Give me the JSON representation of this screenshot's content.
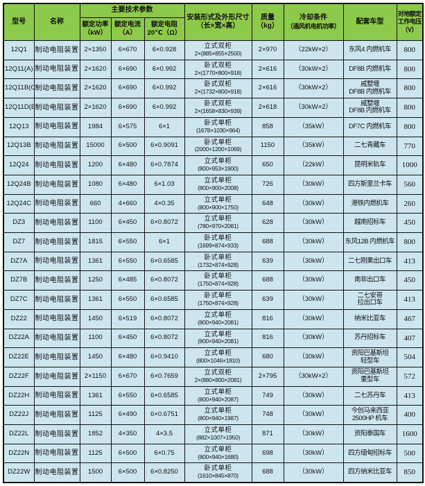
{
  "table": {
    "header": {
      "model": "型号",
      "name": "名称",
      "params_group": "主要技术参数",
      "power": "额定功率\n（kW）",
      "current": "额定电流\n（A）",
      "resistance": "额定电阻\n20℃（Ω）",
      "install": "安装形式及外形尺寸\n（长×宽×高）",
      "mass": "质量\n（kg）",
      "cooling_title": "冷却条件",
      "cooling_sub": "（通风机电机功率）",
      "vehicle": "配套车型",
      "voltage": "对地额定\n工作电压\n（V）"
    },
    "rows": [
      {
        "model": "12Q1",
        "name": "制动电阻装置",
        "power": "2×1350",
        "current": "6×670",
        "resistance": "6×0.928",
        "form": "立式双柜",
        "dims": "2×(885×855×2500)",
        "mass": "2×970",
        "cooling": "（22kW×2）",
        "vehicle": "东风4 内燃机车",
        "voltage": "800"
      },
      {
        "model": "12Q11(A)",
        "name": "制动电阻装置",
        "power": "2×1620",
        "current": "6×690",
        "resistance": "6×0.992",
        "form": "卧式双柜",
        "dims": "2×(1770×800×918)",
        "mass": "2×616",
        "cooling": "（30kW×2）",
        "vehicle": "DF8B 内燃机车",
        "voltage": "800"
      },
      {
        "model": "12Q11B(C)",
        "name": "制动电阻装置",
        "power": "2×1620",
        "current": "6×690",
        "resistance": "6×0.992",
        "form": "卧式双柜",
        "dims": "2×(1732×800×918)",
        "mass": "2×616",
        "cooling": "（30kW×2）",
        "vehicle": "戚墅堰\nDF8B 内燃机车",
        "voltage": "800"
      },
      {
        "model": "12Q11D(E)",
        "name": "制动电阻装置",
        "power": "2×1620",
        "current": "6×690",
        "resistance": "6×0.992",
        "form": "卧式双柜",
        "dims": "2×(1658×830×939)",
        "mass": "2×618",
        "cooling": "（30kW×2）",
        "vehicle": "戚墅堰\nDF8B 内燃机车",
        "voltage": "800"
      },
      {
        "model": "12Q13",
        "name": "制动电阻装置",
        "power": "1984",
        "current": "6×575",
        "resistance": "6×1",
        "form": "卧式单柜",
        "dims": "(1678×1030×964)",
        "mass": "858",
        "cooling": "（35kW）",
        "vehicle": "DF7C 内燃机车",
        "voltage": "800"
      },
      {
        "model": "12Q13B",
        "name": "制动电阻装置",
        "power": "15000",
        "current": "6×500",
        "resistance": "6×0.9091",
        "form": "卧式单柜",
        "dims": "(2000×1200×1069)",
        "mass": "1150",
        "cooling": "（35kW）",
        "vehicle": "二七青藏车",
        "voltage": "770"
      },
      {
        "model": "12Q24",
        "name": "制动电阻装置",
        "power": "1200",
        "current": "6×480",
        "resistance": "6×0.7874",
        "form": "立式单柜",
        "dims": "(800×953×1900)",
        "mass": "650",
        "cooling": "（22kW）",
        "vehicle": "昆明米轨车",
        "voltage": "1000"
      },
      {
        "model": "12Q24B",
        "name": "制动电阻装置",
        "power": "1080",
        "current": "6×480",
        "resistance": "6×1.03",
        "form": "立式单柜",
        "dims": "(800×900×2008)",
        "mass": "726",
        "cooling": "（30kW）",
        "vehicle": "四方斯里兰卡车",
        "voltage": "560"
      },
      {
        "model": "12Q24C",
        "name": "制动电阻装置",
        "power": "660",
        "current": "4×660",
        "resistance": "4×0.35",
        "form": "立式单柜",
        "dims": "(800×900×1750)",
        "mass": "648",
        "cooling": "（30kW）",
        "vehicle": "港铁内燃机车",
        "voltage": "260"
      },
      {
        "model": "DZ3",
        "name": "制动电阻装置",
        "power": "1100",
        "current": "6×450",
        "resistance": "6×0.8072",
        "form": "立式单柜",
        "dims": "(780×970×2081)",
        "mass": "628",
        "cooling": "（30kW）",
        "vehicle": "越南招标车",
        "voltage": "450"
      },
      {
        "model": "DZ7",
        "name": "制动电阻装置",
        "power": "1815",
        "current": "6×550",
        "resistance": "6×1",
        "form": "卧式单柜",
        "dims": "(1699×874×933)",
        "mass": "688",
        "cooling": "（30kW）",
        "vehicle": "东风12B 内燃机车",
        "voltage": "800"
      },
      {
        "model": "DZ7A",
        "name": "制动电阻装置",
        "power": "1361",
        "current": "6×550",
        "resistance": "6×0.6585",
        "form": "卧式单柜",
        "dims": "(1732×874×928)",
        "mass": "639",
        "cooling": "（30kW）",
        "vehicle": "二七刚果出口车",
        "voltage": "413"
      },
      {
        "model": "DZ7B",
        "name": "制动电阻装置",
        "power": "1250",
        "current": "6×485",
        "resistance": "6×0.8072",
        "form": "卧式单柜",
        "dims": "(1750×874×928)",
        "mass": "688",
        "cooling": "（30kW）",
        "vehicle": "南非出口车",
        "voltage": "450"
      },
      {
        "model": "DZ7C",
        "name": "制动电阻装置",
        "power": "1361",
        "current": "6×550",
        "resistance": "6×0.6585",
        "form": "卧式单柜",
        "dims": "(1750×874×928)",
        "mass": "639",
        "cooling": "（30kW）",
        "vehicle": "二七安哥\n拉出口车",
        "voltage": "413"
      },
      {
        "model": "DZ22",
        "name": "制动电阻装置",
        "power": "1450",
        "current": "6×519",
        "resistance": "6×0.8072",
        "form": "立式单柜",
        "dims": "(800×940×2081)",
        "mass": "816",
        "cooling": "（30kW）",
        "vehicle": "纳米比亚车",
        "voltage": "467"
      },
      {
        "model": "DZ22A",
        "name": "制动电阻装置",
        "power": "1100",
        "current": "6×450",
        "resistance": "6×0.8072",
        "form": "立式单柜",
        "dims": "(800×940×2081)",
        "mass": "816",
        "cooling": "（30kW）",
        "vehicle": "苏丹招标车",
        "voltage": "407"
      },
      {
        "model": "DZ22E",
        "name": "制动电阻装置",
        "power": "1450",
        "current": "6×480",
        "resistance": "6×0.9410",
        "form": "立式单柜",
        "dims": "(800×1046×1810)",
        "mass": "680",
        "cooling": "（30kW）",
        "vehicle": "资阳巴基斯坦\n轻型车",
        "voltage": "504"
      },
      {
        "model": "DZ22F",
        "name": "制动电阻装置",
        "power": "2×1150",
        "current": "6×670",
        "resistance": "6×0.7659",
        "form": "立式双柜",
        "dims": "2×(880×800×2081)",
        "mass": "2×795",
        "cooling": "（30kW×2）",
        "vehicle": "资阳巴基斯坦\n重型车",
        "voltage": "572"
      },
      {
        "model": "DZ22H",
        "name": "制动电阻装置",
        "power": "1361",
        "current": "6×550",
        "resistance": "6×0.6585",
        "form": "立式单柜",
        "dims": "(800×940×2087)",
        "mass": "749",
        "cooling": "（30kW）",
        "vehicle": "二七苏丹车",
        "voltage": "413"
      },
      {
        "model": "DZ22J",
        "name": "制动电阻装置",
        "power": "1125",
        "current": "6×490",
        "resistance": "6×0.6751",
        "form": "立式单柜",
        "dims": "(800×940×1987)",
        "mass": "748",
        "cooling": "（30kW）",
        "vehicle": "今创马来西亚\n2500HP 机车",
        "voltage": "400"
      },
      {
        "model": "DZ22L",
        "name": "制动电阻装置",
        "power": "1852",
        "current": "4×350",
        "resistance": "4×3.5",
        "form": "立式单柜",
        "dims": "(882×1007×1950)",
        "mass": "871",
        "cooling": "（30kW）",
        "vehicle": "资阳泰国车",
        "voltage": "1600"
      },
      {
        "model": "DZ22N",
        "name": "制动电阻装置",
        "power": "1125",
        "current": "6×500",
        "resistance": "6×0.75",
        "form": "立式单柜",
        "dims": "(800×940×1680)",
        "mass": "698",
        "cooling": "（30kW）",
        "vehicle": "四方缅甸招标车",
        "voltage": "500"
      },
      {
        "model": "DZ22W",
        "name": "制动电阻装置",
        "power": "1500",
        "current": "6×500",
        "resistance": "6×0.8250",
        "form": "卧式单柜",
        "dims": "(1610×845×870)",
        "mass": "688",
        "cooling": "（30kW）",
        "vehicle": "四方纳米比亚车",
        "voltage": "850"
      }
    ]
  },
  "colors": {
    "header_bg": "#8dc94b",
    "row_bg": "#cde5ef",
    "border": "#111111"
  }
}
